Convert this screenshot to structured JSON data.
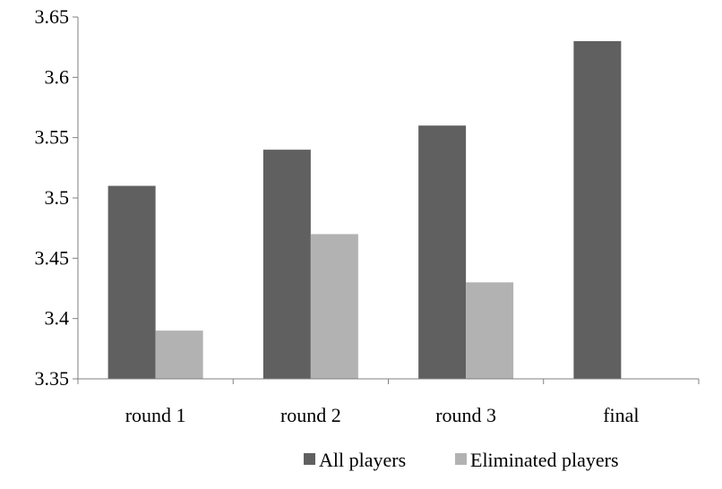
{
  "chart_data": {
    "type": "bar",
    "title": "",
    "xlabel": "",
    "ylabel": "",
    "categories": [
      "round 1",
      "round 2",
      "round 3",
      "final"
    ],
    "series": [
      {
        "name": "All players",
        "color": "#606060",
        "values": [
          3.51,
          3.54,
          3.56,
          3.63
        ]
      },
      {
        "name": "Eliminated players",
        "color": "#b2b2b2",
        "values": [
          3.39,
          3.47,
          3.43,
          null
        ]
      }
    ],
    "ylim": [
      3.35,
      3.65
    ],
    "yticks": [
      "3.35",
      "3.4",
      "3.45",
      "3.5",
      "3.55",
      "3.6",
      "3.65"
    ],
    "grid": false,
    "legend_position": "bottom-right"
  }
}
